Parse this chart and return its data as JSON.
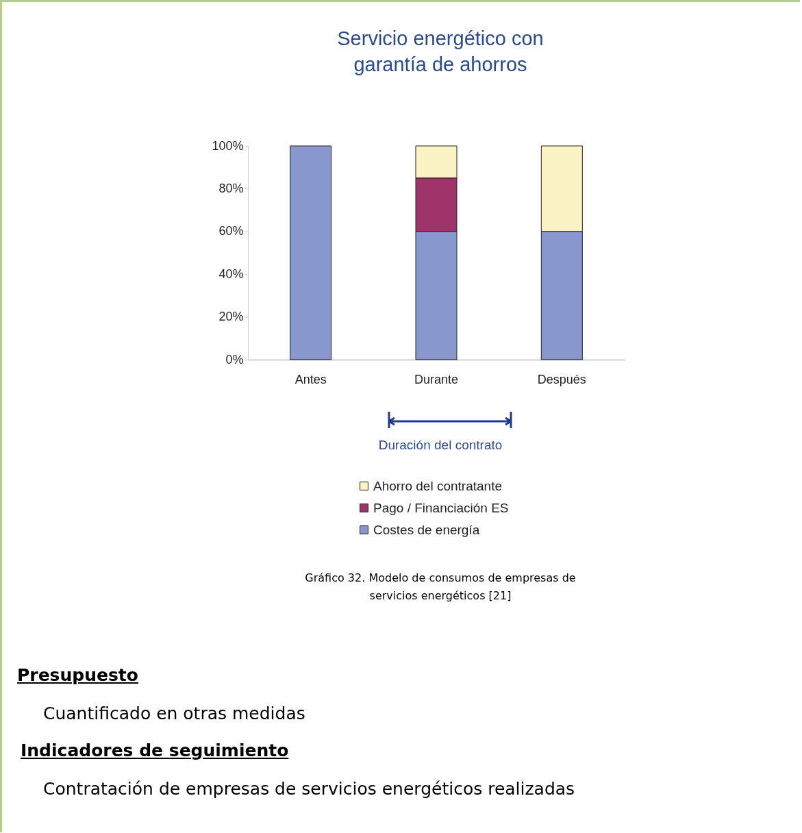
{
  "chart_data": {
    "type": "bar",
    "title": "Servicio energético con garantía de ahorros",
    "categories": [
      "Antes",
      "Durante",
      "Después"
    ],
    "stacked": true,
    "series": [
      {
        "name": "Costes de energía",
        "color": "#8898cf",
        "values": [
          100,
          60,
          60
        ]
      },
      {
        "name": "Pago / Financiación ES",
        "color": "#9e3469",
        "values": [
          null,
          25,
          null
        ]
      },
      {
        "name": "Ahorro del contratante",
        "color": "#fbf3c3",
        "values": [
          null,
          15,
          40
        ]
      }
    ],
    "ylim": [
      0,
      100
    ],
    "yticks": [
      {
        "value": 0,
        "label": "0%"
      },
      {
        "value": 20,
        "label": "20%"
      },
      {
        "value": 40,
        "label": "40%"
      },
      {
        "value": 60,
        "label": "60%"
      },
      {
        "value": 80,
        "label": "80%"
      },
      {
        "value": 100,
        "label": "100%"
      }
    ],
    "legend": "bottom",
    "annotations": [
      "Duración del contrato",
      "Gráfico 32. Modelo de consumos de empresas de servicios energéticos [21]",
      "Presupuesto",
      "Cuantificado en otras medidas",
      "Indicadores de seguimiento",
      "Contratación de empresas de servicios energéticos realizadas"
    ]
  }
}
